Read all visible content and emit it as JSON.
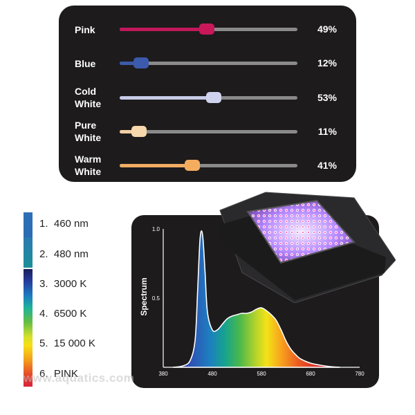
{
  "sliders": [
    {
      "label": "Pink",
      "value_text": "49%",
      "level": 0.49,
      "color": "#c2185b",
      "knob": "#c8185a"
    },
    {
      "label": "Blue",
      "value_text": "12%",
      "level": 0.12,
      "color": "#3b5aa8",
      "knob": "#3c5aad"
    },
    {
      "label": "Cold White",
      "value_text": "53%",
      "level": 0.53,
      "color": "#c7cbe8",
      "knob": "#d0d3ee"
    },
    {
      "label": "Pure White",
      "value_text": "11%",
      "level": 0.11,
      "color": "#f2cfa4",
      "knob": "#f6d8ac"
    },
    {
      "label": "Warm White",
      "value_text": "41%",
      "level": 0.41,
      "color": "#f1ad63",
      "knob": "#f4ad5e"
    }
  ],
  "legend": [
    {
      "number": "1.",
      "text": "460 nm"
    },
    {
      "number": "2.",
      "text": "480 nm"
    },
    {
      "number": "3.",
      "text": "3000 K"
    },
    {
      "number": "4.",
      "text": "6500 K"
    },
    {
      "number": "5.",
      "text": "15 000 K"
    },
    {
      "number": "6.",
      "text": "PINK"
    }
  ],
  "chart_data": {
    "type": "area",
    "ylabel": "Spectrum",
    "xlabel": "",
    "xlim": [
      380,
      780
    ],
    "ylim": [
      0,
      1.0
    ],
    "x_ticks": [
      "380",
      "480",
      "580",
      "680",
      "780"
    ],
    "y_ticks": [
      "0.5",
      "1.0"
    ],
    "series": [
      {
        "x": [
          400,
          420,
          435,
          445,
          450,
          455,
          460,
          465,
          470,
          480,
          490,
          500,
          510,
          520,
          530,
          540,
          550,
          560,
          570,
          580,
          590,
          600,
          610,
          620,
          630,
          640,
          650,
          660,
          680,
          700,
          720,
          740
        ],
        "values": [
          0.0,
          0.01,
          0.05,
          0.2,
          0.55,
          0.93,
          0.96,
          0.7,
          0.4,
          0.27,
          0.27,
          0.31,
          0.35,
          0.37,
          0.38,
          0.39,
          0.39,
          0.4,
          0.42,
          0.43,
          0.41,
          0.38,
          0.34,
          0.27,
          0.19,
          0.13,
          0.09,
          0.06,
          0.03,
          0.015,
          0.005,
          0.0
        ]
      }
    ]
  },
  "watermark": "www.aquatics.com"
}
